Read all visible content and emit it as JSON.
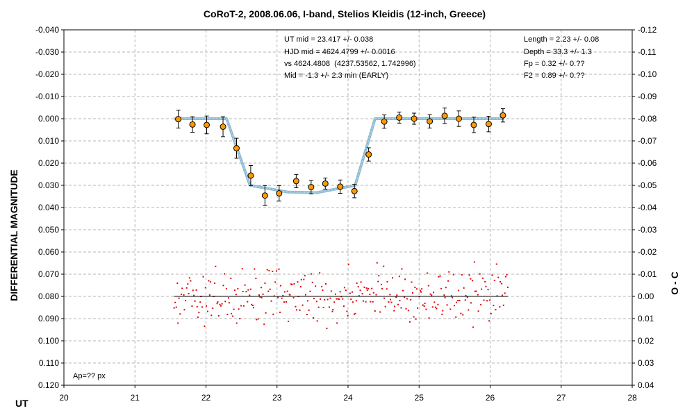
{
  "chart_data": {
    "type": "scatter",
    "title": "CoRoT-2, 2008.06.06, I-band, Stelios Kleidis (12-inch, Greece)",
    "xlabel": "UT",
    "ylabel": "DIFFERENTIAL MAGNITUDE",
    "y2label": "O - C",
    "xlim": [
      20,
      28
    ],
    "ylim": [
      0.12,
      -0.04
    ],
    "y2lim": [
      0.04,
      -0.12
    ],
    "x_ticks": [
      "20",
      "21",
      "22",
      "23",
      "24",
      "25",
      "26",
      "27",
      "28"
    ],
    "y_ticks": [
      "-0.040",
      "-0.030",
      "-0.020",
      "-0.010",
      "0.000",
      "0.010",
      "0.020",
      "0.030",
      "0.040",
      "0.050",
      "0.060",
      "0.070",
      "0.080",
      "0.090",
      "0.100",
      "0.110",
      "0.120"
    ],
    "y2_ticks": [
      "-0.12",
      "-0.11",
      "-0.10",
      "-0.09",
      "-0.08",
      "-0.07",
      "-0.06",
      "-0.05",
      "-0.04",
      "-0.03",
      "-0.02",
      "-0.01",
      "0.00",
      "0.01",
      "0.02",
      "0.03",
      "0.04"
    ],
    "grid": true,
    "annotations_center": [
      "UT mid = 23.417 +/- 0.038",
      "HJD mid = 4624.4799 +/- 0.0016",
      "vs 4624.4808  (4237.53562, 1.742996)",
      "Mid = -1.3 +/- 2.3 min (EARLY)"
    ],
    "annotations_right": [
      "Length = 2.23 +/- 0.08",
      "Depth = 33.3 +/- 1.3",
      "Fp = 0.32 +/- 0.??",
      "F2 = 0.89 +/- 0.??"
    ],
    "aperture_note": "Ap=?? px",
    "binned": {
      "x": [
        21.61,
        21.81,
        22.01,
        22.24,
        22.43,
        22.63,
        22.83,
        23.03,
        23.27,
        23.48,
        23.68,
        23.89,
        24.09,
        24.29,
        24.51,
        24.72,
        24.93,
        25.15,
        25.36,
        25.56,
        25.77,
        25.98,
        26.18
      ],
      "y": [
        0.0002,
        0.0026,
        0.0028,
        0.0036,
        0.0133,
        0.0256,
        0.0346,
        0.0336,
        0.0281,
        0.0308,
        0.0292,
        0.0306,
        0.0326,
        0.0161,
        0.0013,
        -0.0005,
        0.0,
        0.0012,
        -0.0013,
        0.0,
        0.0028,
        0.0024,
        -0.0015
      ],
      "err": [
        0.004,
        0.0035,
        0.004,
        0.0045,
        0.0045,
        0.0045,
        0.0045,
        0.0035,
        0.003,
        0.003,
        0.0025,
        0.003,
        0.003,
        0.003,
        0.003,
        0.0025,
        0.0025,
        0.003,
        0.0035,
        0.0035,
        0.0035,
        0.0035,
        0.003
      ]
    },
    "model": {
      "x": [
        21.55,
        22.29,
        22.62,
        23.15,
        23.56,
        24.1,
        24.38,
        26.2
      ],
      "y": [
        0.0,
        0.0,
        0.03,
        0.033,
        0.0333,
        0.03,
        0.0,
        0.0
      ]
    },
    "oc_baseline": {
      "x": [
        21.55,
        26.25
      ],
      "y": [
        0.08,
        0.08
      ]
    },
    "oc_note": "raw O-C residual points (red) scattered around 0.080 between UT 21.55 and 26.25, mostly within 0.060-0.100",
    "colors": {
      "binned_fill": "#ff9900",
      "binned_edge": "#000000",
      "model_outer": "#8fb8d0",
      "model_inner": "#add8e6",
      "residuals": "#e00000",
      "grid": "#b4b4b4"
    }
  }
}
